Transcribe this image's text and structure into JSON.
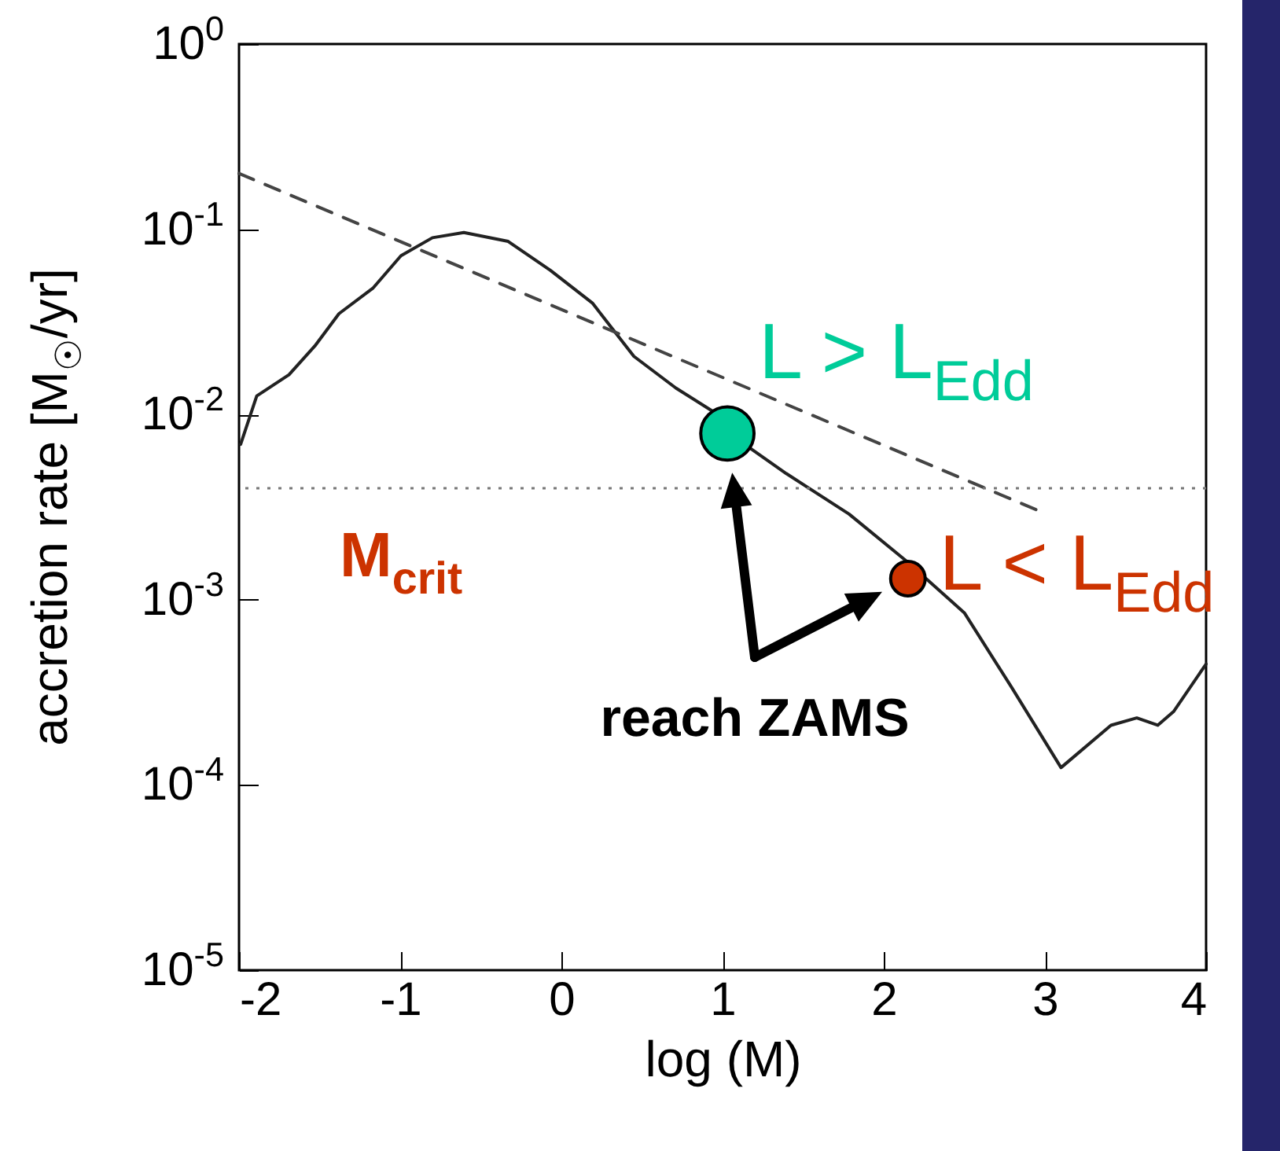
{
  "chart_data": {
    "type": "line",
    "xlabel": "log (M)",
    "ylabel": "accretion rate [M$_{☉}$/yr]",
    "log": "y",
    "xlim": [
      -2,
      4
    ],
    "xticks": [
      -2,
      -1,
      0,
      1,
      2,
      3,
      4
    ],
    "ylim": [
      1e-05,
      1
    ],
    "yticks": [
      {
        "value": 1e-05,
        "label": "10$^{-5}$"
      },
      {
        "value": 0.0001,
        "label": "10$^{-4}$"
      },
      {
        "value": 0.001,
        "label": "10$^{-3}$"
      },
      {
        "value": 0.01,
        "label": "10$^{-2}$"
      },
      {
        "value": 0.1,
        "label": "10$^{-1}$"
      },
      {
        "value": 1,
        "label": "10$^{0}$"
      }
    ],
    "series": [
      {
        "type": "line",
        "color": "#222222",
        "line_style": "solid",
        "x": [
          -1.99,
          -1.89,
          -1.69,
          -1.53,
          -1.38,
          -1.17,
          -0.995,
          -0.8,
          -0.605,
          -0.33,
          -0.068,
          0.192,
          0.45,
          0.71,
          0.94,
          1.168,
          1.395,
          1.785,
          2.14,
          2.5,
          2.79,
          3.1,
          3.41,
          3.57,
          3.7,
          3.8,
          4.0
        ],
        "values": [
          0.0069,
          0.0126,
          0.0164,
          0.0234,
          0.035,
          0.048,
          0.072,
          0.09,
          0.096,
          0.086,
          0.06,
          0.04,
          0.0206,
          0.0139,
          0.0104,
          0.0066,
          0.0048,
          0.0029,
          0.00162,
          0.00085,
          0.00034,
          0.000124,
          0.00021,
          0.00023,
          0.00021,
          0.00025,
          0.00045
        ]
      },
      {
        "type": "line",
        "color": "#444444",
        "line_style": "dashed",
        "x": [
          -2,
          2.97
        ],
        "values": [
          0.2,
          0.003
        ]
      },
      {
        "type": "bubble",
        "x": [
          1.03,
          2.15
        ],
        "values": [
          0.0079,
          0.0013
        ],
        "sizes": [
          1,
          0.42
        ],
        "colors": [
          "#00cc99",
          "#cc3300"
        ]
      }
    ],
    "ref_lines": [
      {
        "axis": "y",
        "value": 0.004,
        "label": "M$_{crit}$",
        "line_style": "dotted",
        "color": "#777777"
      }
    ],
    "annotations": [
      {
        "text": "L > L$_{Edd}$",
        "x": 1.03,
        "y": 0.0079
      },
      {
        "text": "L < L$_{Edd}$",
        "x": 2.15,
        "y": 0.0013
      },
      "reach ZAMS"
    ],
    "grid": false
  }
}
